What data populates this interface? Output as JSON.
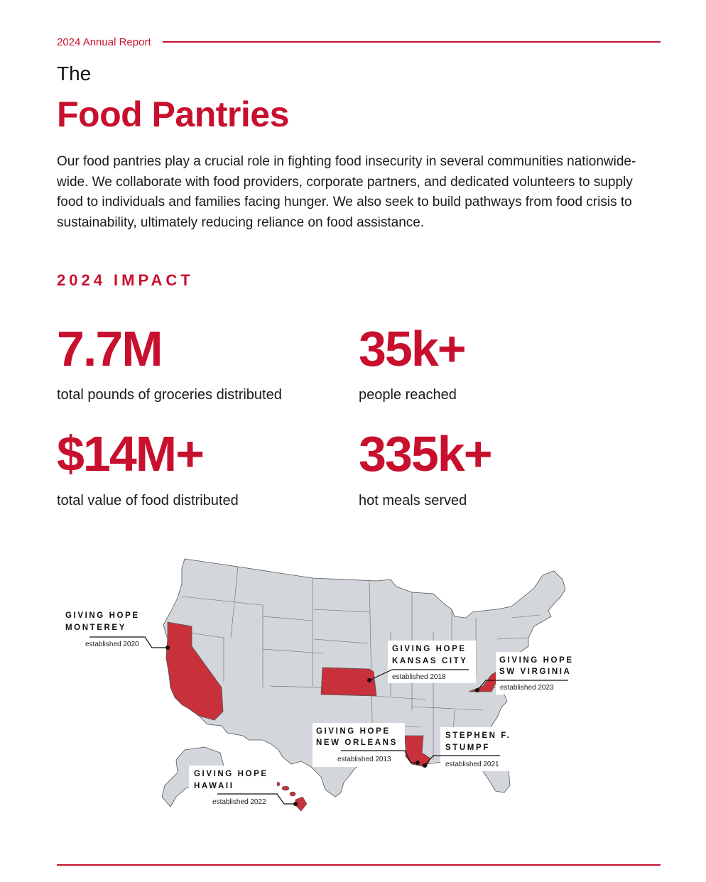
{
  "header": {
    "label": "2024 Annual Report"
  },
  "title": {
    "pre": "The",
    "main": "Food Pantries"
  },
  "intro": "Our food pantries play a crucial role in fighting food insecurity in several communities nationwide-wide. We collaborate with food providers, corporate partners, and dedicated volunteers to supply  food to individuals and families facing hunger.  We also seek to build pathways from food crisis to sustainability, ultimately reducing reliance on food assistance.",
  "impact": {
    "heading": "2024 IMPACT",
    "stats": [
      {
        "value": "7.7M",
        "label": "total pounds of groceries distributed"
      },
      {
        "value": "35k+",
        "label": "people reached"
      },
      {
        "value": "$14M+",
        "label": "total value of food distributed"
      },
      {
        "value": "335k+",
        "label": "hot meals served"
      }
    ]
  },
  "map": {
    "highlight_color": "#c8303a",
    "base_color": "#d3d7dc",
    "callouts": [
      {
        "line1": "GIVING HOPE",
        "line2": "MONTEREY",
        "established": "established 2020"
      },
      {
        "line1": "GIVING HOPE",
        "line2": "KANSAS CITY",
        "established": "established 2018"
      },
      {
        "line1": "GIVING HOPE",
        "line2": "SW VIRGINIA",
        "established": "established 2023"
      },
      {
        "line1": "GIVING HOPE",
        "line2": "NEW ORLEANS",
        "established": "established 2013"
      },
      {
        "line1": "STEPHEN F.",
        "line2": "STUMPF",
        "established": "established 2021"
      },
      {
        "line1": "GIVING HOPE",
        "line2": "HAWAII",
        "established": "established 2022"
      }
    ]
  }
}
